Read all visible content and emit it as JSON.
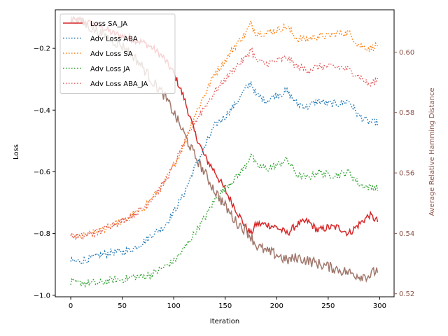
{
  "chart_data": {
    "type": "line",
    "xlabel": "Iteration",
    "ylabel_left": "Loss",
    "ylabel_right": "Average Relative Hamming Distance",
    "xlim": [
      -15,
      314
    ],
    "ylim_left": [
      -1.005,
      -0.075
    ],
    "ylim_right": [
      0.519,
      0.614
    ],
    "x_ticks": [
      0,
      50,
      100,
      150,
      200,
      250,
      300
    ],
    "y_ticks_left": [
      -1.0,
      -0.8,
      -0.6,
      -0.4,
      -0.2
    ],
    "y_ticks_right": [
      0.52,
      0.54,
      0.56,
      0.58,
      0.6
    ],
    "y_tick_labels_left": [
      "−1.0",
      "−0.8",
      "−0.6",
      "−0.4",
      "−0.2"
    ],
    "y_tick_labels_right": [
      "0.52",
      "0.54",
      "0.56",
      "0.58",
      "0.60"
    ],
    "right_axis_color": "#8c564b",
    "legend_position": "upper-left",
    "grid": false,
    "x": [
      0,
      10,
      20,
      30,
      40,
      50,
      60,
      70,
      80,
      90,
      100,
      110,
      120,
      130,
      140,
      150,
      160,
      170,
      175,
      180,
      190,
      200,
      210,
      220,
      230,
      240,
      250,
      260,
      270,
      280,
      290,
      298
    ],
    "series": [
      {
        "name": "Loss SA_JA",
        "axis": "left",
        "style": "solid",
        "color": "#d62728",
        "values": [
          -0.11,
          -0.11,
          -0.12,
          -0.13,
          -0.15,
          -0.16,
          -0.17,
          -0.18,
          -0.2,
          -0.23,
          -0.28,
          -0.36,
          -0.47,
          -0.55,
          -0.6,
          -0.66,
          -0.72,
          -0.78,
          -0.8,
          -0.77,
          -0.77,
          -0.78,
          -0.8,
          -0.77,
          -0.76,
          -0.79,
          -0.78,
          -0.78,
          -0.8,
          -0.77,
          -0.74,
          -0.76
        ]
      },
      {
        "name": "Adv Loss ABA",
        "axis": "left",
        "style": "dotted",
        "color": "#1f77b4",
        "values": [
          -0.89,
          -0.89,
          -0.88,
          -0.87,
          -0.86,
          -0.86,
          -0.85,
          -0.83,
          -0.8,
          -0.78,
          -0.73,
          -0.67,
          -0.59,
          -0.52,
          -0.45,
          -0.42,
          -0.38,
          -0.33,
          -0.31,
          -0.35,
          -0.37,
          -0.35,
          -0.34,
          -0.38,
          -0.39,
          -0.37,
          -0.38,
          -0.38,
          -0.37,
          -0.42,
          -0.44,
          -0.44
        ]
      },
      {
        "name": "Adv Loss SA",
        "axis": "left",
        "style": "dotted",
        "color": "#ff7f0e",
        "values": [
          -0.81,
          -0.81,
          -0.8,
          -0.79,
          -0.77,
          -0.76,
          -0.74,
          -0.72,
          -0.68,
          -0.64,
          -0.58,
          -0.51,
          -0.42,
          -0.35,
          -0.28,
          -0.24,
          -0.19,
          -0.15,
          -0.12,
          -0.15,
          -0.15,
          -0.14,
          -0.13,
          -0.17,
          -0.17,
          -0.16,
          -0.16,
          -0.15,
          -0.15,
          -0.19,
          -0.2,
          -0.19
        ]
      },
      {
        "name": "Adv Loss JA",
        "axis": "left",
        "style": "dotted",
        "color": "#2ca02c",
        "values": [
          -0.96,
          -0.96,
          -0.96,
          -0.96,
          -0.95,
          -0.95,
          -0.94,
          -0.94,
          -0.93,
          -0.91,
          -0.89,
          -0.85,
          -0.8,
          -0.75,
          -0.69,
          -0.65,
          -0.62,
          -0.58,
          -0.54,
          -0.58,
          -0.59,
          -0.58,
          -0.56,
          -0.61,
          -0.62,
          -0.6,
          -0.61,
          -0.61,
          -0.6,
          -0.64,
          -0.65,
          -0.65
        ]
      },
      {
        "name": "Adv Loss ABA_JA",
        "axis": "left",
        "style": "dotted",
        "color": "#e45756",
        "values": [
          -0.81,
          -0.81,
          -0.8,
          -0.79,
          -0.77,
          -0.76,
          -0.74,
          -0.72,
          -0.68,
          -0.64,
          -0.58,
          -0.51,
          -0.44,
          -0.39,
          -0.34,
          -0.3,
          -0.26,
          -0.23,
          -0.2,
          -0.24,
          -0.25,
          -0.24,
          -0.23,
          -0.26,
          -0.27,
          -0.26,
          -0.26,
          -0.26,
          -0.27,
          -0.29,
          -0.32,
          -0.3
        ]
      },
      {
        "name": "",
        "axis": "right",
        "style": "solid",
        "color": "#a0776c",
        "values": [
          0.611,
          0.61,
          0.608,
          0.606,
          0.604,
          0.602,
          0.599,
          0.595,
          0.59,
          0.586,
          0.58,
          0.573,
          0.566,
          0.56,
          0.554,
          0.549,
          0.544,
          0.541,
          0.539,
          0.536,
          0.534,
          0.533,
          0.531,
          0.532,
          0.531,
          0.53,
          0.529,
          0.528,
          0.527,
          0.526,
          0.526,
          0.528
        ]
      }
    ]
  }
}
